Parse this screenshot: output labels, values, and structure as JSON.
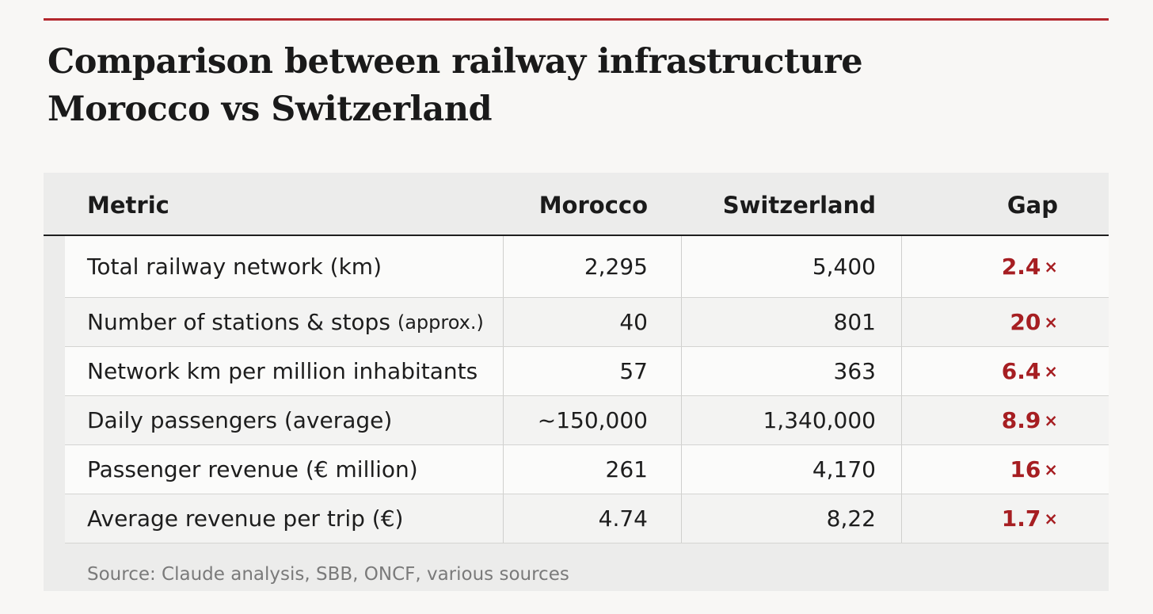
{
  "chart_data": {
    "type": "table",
    "title_line1": "Comparison between railway infrastructure",
    "title_line2": "Morocco vs Switzerland",
    "columns": {
      "metric": "Metric",
      "morocco": "Morocco",
      "switzerland": "Switzerland",
      "gap": "Gap"
    },
    "rows": [
      {
        "metric": "Total railway network (km)",
        "metric_sub": "",
        "morocco": "2,295",
        "switzerland": "5,400",
        "gap": "2.4",
        "gap_suffix": "×"
      },
      {
        "metric": "Number of stations & stops",
        "metric_sub": "(approx.)",
        "morocco": "40",
        "switzerland": "801",
        "gap": "20",
        "gap_suffix": "×"
      },
      {
        "metric": "Network km per million inhabitants",
        "metric_sub": "",
        "morocco": "57",
        "switzerland": "363",
        "gap": "6.4",
        "gap_suffix": "×"
      },
      {
        "metric": "Daily passengers (average)",
        "metric_sub": "",
        "morocco": "~150,000",
        "switzerland": "1,340,000",
        "gap": "8.9",
        "gap_suffix": "×"
      },
      {
        "metric": "Passenger revenue (€ million)",
        "metric_sub": "",
        "morocco": "261",
        "switzerland": "4,170",
        "gap": "16",
        "gap_suffix": "×"
      },
      {
        "metric": "Average revenue per trip (€)",
        "metric_sub": "",
        "morocco": "4.74",
        "switzerland": "8,22",
        "gap": "1.7",
        "gap_suffix": "×"
      }
    ],
    "source": "Source: Claude analysis, SBB, ONCF, various sources",
    "accent_color": "#b3272d"
  }
}
